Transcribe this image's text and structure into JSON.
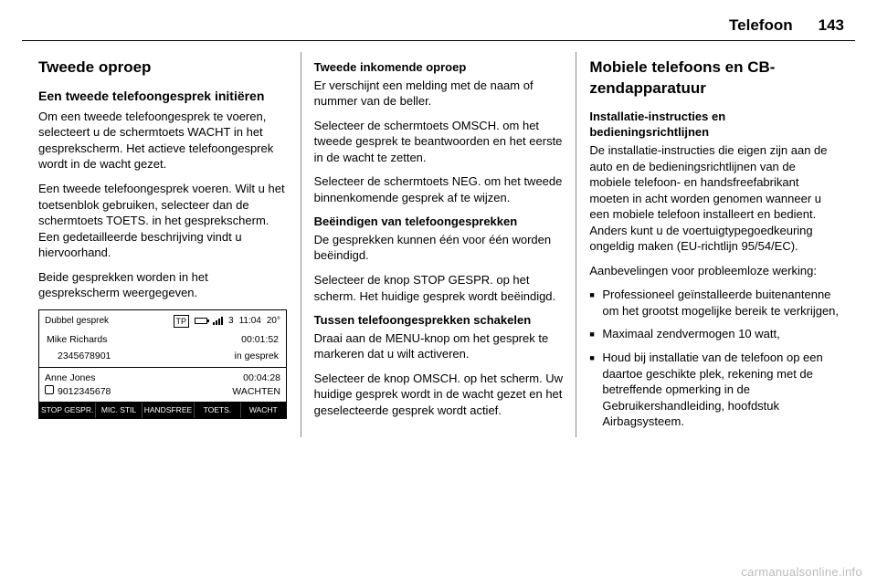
{
  "header": {
    "chapter": "Telefoon",
    "page": "143"
  },
  "col1": {
    "h2": "Tweede oproep",
    "h3a": "Een tweede telefoongesprek initiëren",
    "p1": "Om een tweede telefoongesprek te voeren, selecteert u de schermtoets WACHT in het gesprekscherm. Het actieve telefoongesprek wordt in de wacht gezet.",
    "p2": "Een tweede telefoongesprek voeren. Wilt u het toetsenblok gebruiken, selecteer dan de schermtoets TOETS. in het gesprekscherm. Een gedetailleerde beschrijving vindt u hiervoorhand.",
    "p3": "Beide gesprekken worden in het gesprekscherm weergegeven."
  },
  "phone": {
    "title": "Dubbel gesprek",
    "tp": "TP",
    "sig_label": "3",
    "time": "11:04",
    "temp": "20°",
    "c1_name": "Mike Richards",
    "c1_timer": "00:01:52",
    "c1_number": "2345678901",
    "c1_status": "in gesprek",
    "c2_name": "Anne Jones",
    "c2_timer": "00:04:28",
    "c2_number": "9012345678",
    "c2_status": "WACHTEN",
    "sk1": "STOP GESPR.",
    "sk2": "MIC. STIL",
    "sk3": "HANDSFREE",
    "sk4": "TOETS.",
    "sk5": "WACHT"
  },
  "col2": {
    "h4a": "Tweede inkomende oproep",
    "p1": "Er verschijnt een melding met de naam of nummer van de beller.",
    "p2": "Selecteer de schermtoets OMSCH. om het tweede gesprek te beantwoorden en het eerste in de wacht te zetten.",
    "p3": "Selecteer de schermtoets NEG. om het tweede binnenkomende gesprek af te wijzen.",
    "h4b": "Beëindigen van telefoongesprekken",
    "p4": "De gesprekken kunnen één voor één worden beëindigd.",
    "p5": "Selecteer de knop STOP GESPR. op het scherm. Het huidige gesprek wordt beëindigd.",
    "h4c": "Tussen telefoongesprekken schakelen",
    "p6": "Draai aan de MENU-knop om het gesprek te markeren dat u wilt activeren.",
    "p7": "Selecteer de knop OMSCH. op het scherm. Uw huidige gesprek wordt in de wacht gezet en het geselecteerde gesprek wordt actief."
  },
  "col3": {
    "h2": "Mobiele telefoons en CB-zendapparatuur",
    "h4a": "Installatie-instructies en bedieningsrichtlijnen",
    "p1": "De installatie-instructies die eigen zijn aan de auto en de bedieningsrichtlijnen van de mobiele telefoon- en handsfreefabrikant moeten in acht worden genomen wanneer u een mobiele telefoon installeert en bedient. Anders kunt u de voertuigtypegoedkeuring ongeldig maken (EU-richtlijn 95/54/EC).",
    "p2": "Aanbevelingen voor probleemloze werking:",
    "b1": "Professioneel geïnstalleerde buitenantenne om het grootst mogelijke bereik te verkrijgen,",
    "b2": "Maximaal zendvermogen 10 watt,",
    "b3": "Houd bij installatie van de telefoon op een daartoe geschikte plek, rekening met de betreffende opmerking in de Gebruikershandleiding, hoofdstuk Airbagsysteem."
  },
  "watermark": "carmanualsonline.info"
}
